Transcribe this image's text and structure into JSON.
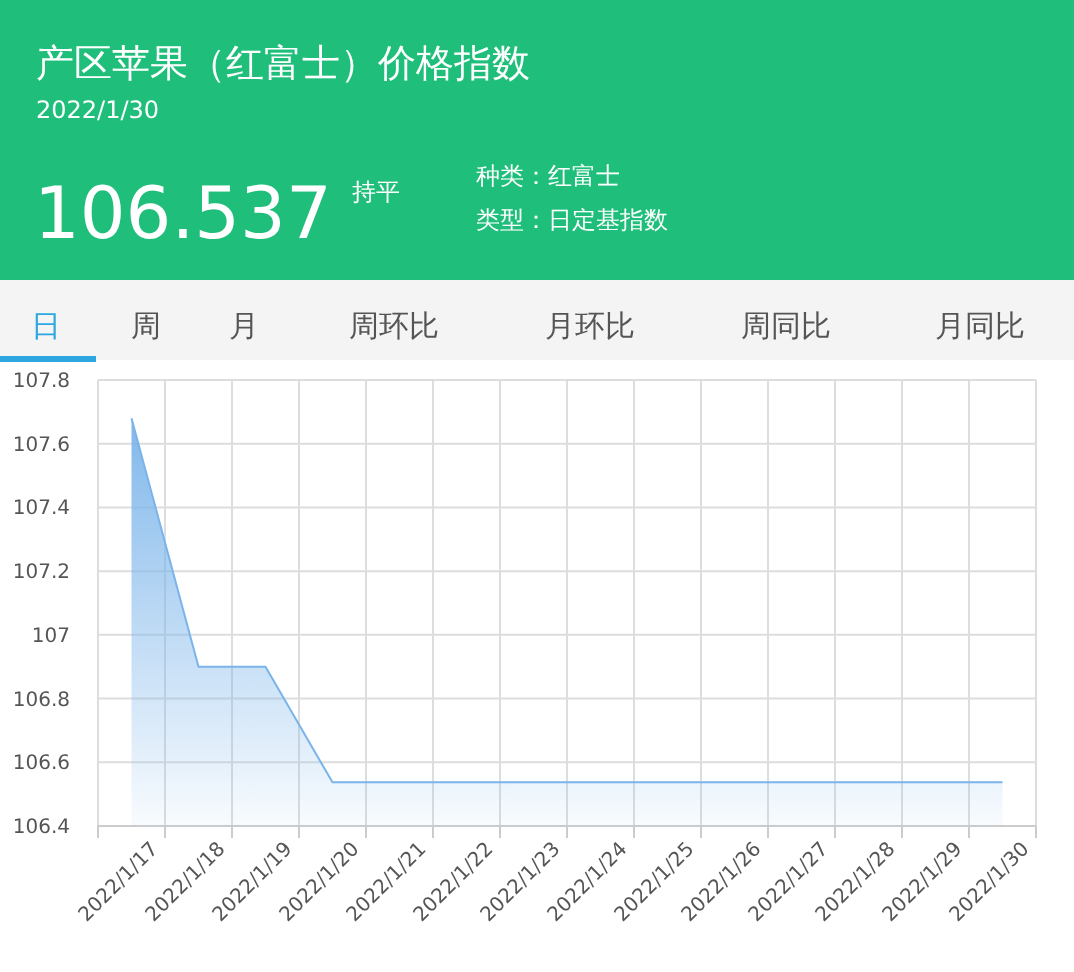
{
  "chart_data": {
    "type": "area",
    "title": "产区苹果（红富士）价格指数",
    "subtitle": "2022/1/30",
    "annotations": [
      "106.537",
      "持平",
      "种类：红富士",
      "类型：日定基指数",
      "日",
      "周",
      "月",
      "周环比",
      "月环比",
      "周同比",
      "月同比"
    ],
    "categories": [
      "2022/1/17",
      "2022/1/18",
      "2022/1/19",
      "2022/1/20",
      "2022/1/21",
      "2022/1/22",
      "2022/1/23",
      "2022/1/24",
      "2022/1/25",
      "2022/1/26",
      "2022/1/27",
      "2022/1/28",
      "2022/1/29",
      "2022/1/30"
    ],
    "series": [
      {
        "color": "#7ab4ea",
        "values": [
          107.68,
          106.9,
          106.9,
          106.537,
          106.537,
          106.537,
          106.537,
          106.537,
          106.537,
          106.537,
          106.537,
          106.537,
          106.537,
          106.537
        ]
      }
    ],
    "ylim": [
      106.4,
      107.8
    ],
    "yticks": [
      106.4,
      106.6,
      106.8,
      107,
      107.2,
      107.4,
      107.6,
      107.8
    ],
    "grid": true
  }
}
